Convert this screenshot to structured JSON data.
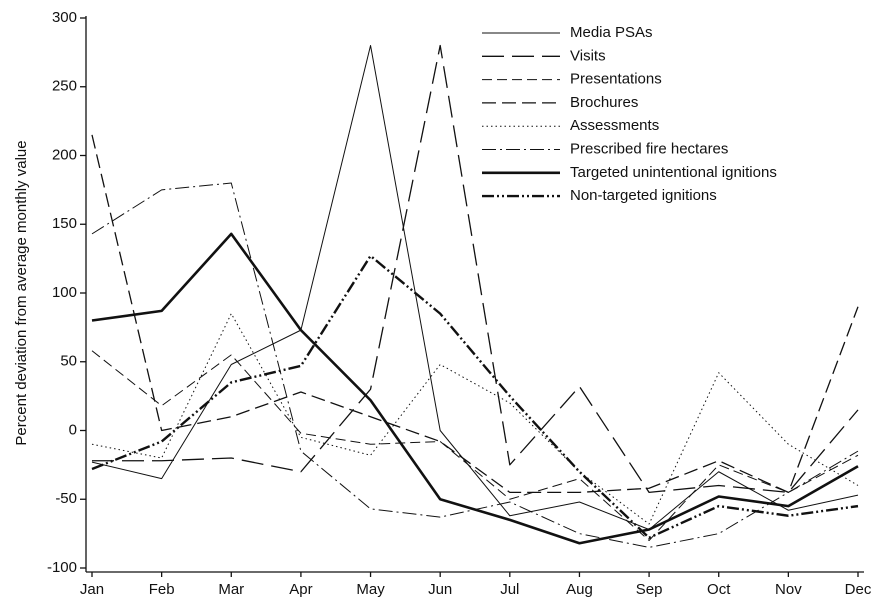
{
  "chart_data": {
    "type": "line",
    "ylabel": "Percent deviation from average monthly value",
    "categories": [
      "Jan",
      "Feb",
      "Mar",
      "Apr",
      "May",
      "Jun",
      "Jul",
      "Aug",
      "Sep",
      "Oct",
      "Nov",
      "Dec"
    ],
    "ylim": [
      -100,
      300
    ],
    "yticks": [
      -100,
      -50,
      0,
      50,
      100,
      150,
      200,
      250,
      300
    ],
    "legend": "upper right",
    "series": [
      {
        "name": "Media PSAs",
        "color": "#111111",
        "dash": "none",
        "width": 1,
        "values": [
          -23,
          -35,
          48,
          73,
          280,
          0,
          -62,
          -52,
          -72,
          -30,
          -58,
          -47
        ]
      },
      {
        "name": "Visits",
        "color": "#111111",
        "dash": "22 8",
        "width": 1.3,
        "values": [
          -22,
          -22,
          -20,
          -30,
          30,
          280,
          -25,
          32,
          -45,
          -40,
          -45,
          15
        ]
      },
      {
        "name": "Presentations",
        "color": "#111111",
        "dash": "10 5",
        "width": 1,
        "values": [
          58,
          18,
          55,
          -2,
          -10,
          -8,
          -50,
          -35,
          -80,
          -25,
          -45,
          -18
        ]
      },
      {
        "name": "Brochures",
        "color": "#111111",
        "dash": "14 6",
        "width": 1.3,
        "values": [
          215,
          0,
          10,
          28,
          10,
          -8,
          -45,
          -45,
          -42,
          -22,
          -45,
          90
        ]
      },
      {
        "name": "Assessments",
        "color": "#111111",
        "dash": "1.5 3",
        "width": 1,
        "values": [
          -10,
          -20,
          85,
          -5,
          -18,
          48,
          20,
          -30,
          -68,
          42,
          -10,
          -40
        ]
      },
      {
        "name": "Prescribed fire hectares",
        "color": "#111111",
        "dash": "14 4 2 4",
        "width": 1,
        "values": [
          143,
          175,
          180,
          -15,
          -57,
          -63,
          -52,
          -75,
          -85,
          -75,
          -45,
          -15
        ]
      },
      {
        "name": "Targeted unintentional ignitions",
        "color": "#111111",
        "dash": "none",
        "width": 2.6,
        "values": [
          80,
          87,
          143,
          73,
          22,
          -50,
          -65,
          -82,
          -72,
          -48,
          -55,
          -26
        ]
      },
      {
        "name": "Non-targeted ignitions",
        "color": "#111111",
        "dash": "12 3 2 3 2 3",
        "width": 2.4,
        "values": [
          -28,
          -8,
          35,
          47,
          127,
          85,
          25,
          -30,
          -78,
          -55,
          -62,
          -55
        ]
      }
    ]
  }
}
